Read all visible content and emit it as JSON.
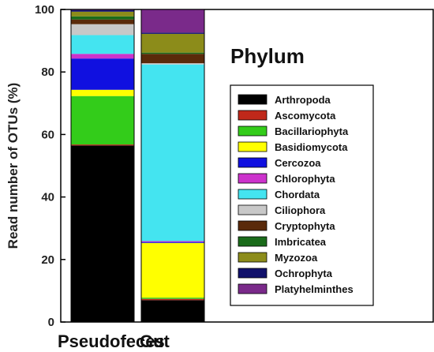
{
  "chart_data": {
    "type": "bar",
    "stacked": true,
    "title": "Phylum",
    "ylabel": "Read number of OTUs (%)",
    "xlabel": "",
    "ylim": [
      0,
      100
    ],
    "yticks": [
      0,
      20,
      40,
      60,
      80,
      100
    ],
    "categories": [
      "Pseudofeces",
      "Gut"
    ],
    "legend_position": "right",
    "series": [
      {
        "name": "Arthropoda",
        "color": "#000000",
        "values": [
          56.5,
          7.0
        ]
      },
      {
        "name": "Ascomycota",
        "color": "#c0281a",
        "values": [
          0.3,
          0.4
        ]
      },
      {
        "name": "Bacillariophyta",
        "color": "#33cc1a",
        "values": [
          15.5,
          0.4
        ]
      },
      {
        "name": "Basidiomycota",
        "color": "#ffff00",
        "values": [
          2.0,
          17.5
        ]
      },
      {
        "name": "Cercozoa",
        "color": "#1010e0",
        "values": [
          10.0,
          0.3
        ]
      },
      {
        "name": "Chlorophyta",
        "color": "#cc33cc",
        "values": [
          1.5,
          0.3
        ]
      },
      {
        "name": "Chordata",
        "color": "#44e4f0",
        "values": [
          6.0,
          56.5
        ]
      },
      {
        "name": "Ciliophora",
        "color": "#c8c8c8",
        "values": [
          3.5,
          0.4
        ]
      },
      {
        "name": "Cryptophyta",
        "color": "#5a2a0a",
        "values": [
          1.5,
          3.0
        ]
      },
      {
        "name": "Imbricatea",
        "color": "#1a6b1a",
        "values": [
          1.0,
          0.4
        ]
      },
      {
        "name": "Myzozoa",
        "color": "#8c8c1a",
        "values": [
          1.5,
          6.0
        ]
      },
      {
        "name": "Ochrophyta",
        "color": "#10106b",
        "values": [
          0.5,
          0.4
        ]
      },
      {
        "name": "Platyhelminthes",
        "color": "#7a2a8a",
        "values": [
          0.2,
          7.4
        ]
      }
    ]
  }
}
